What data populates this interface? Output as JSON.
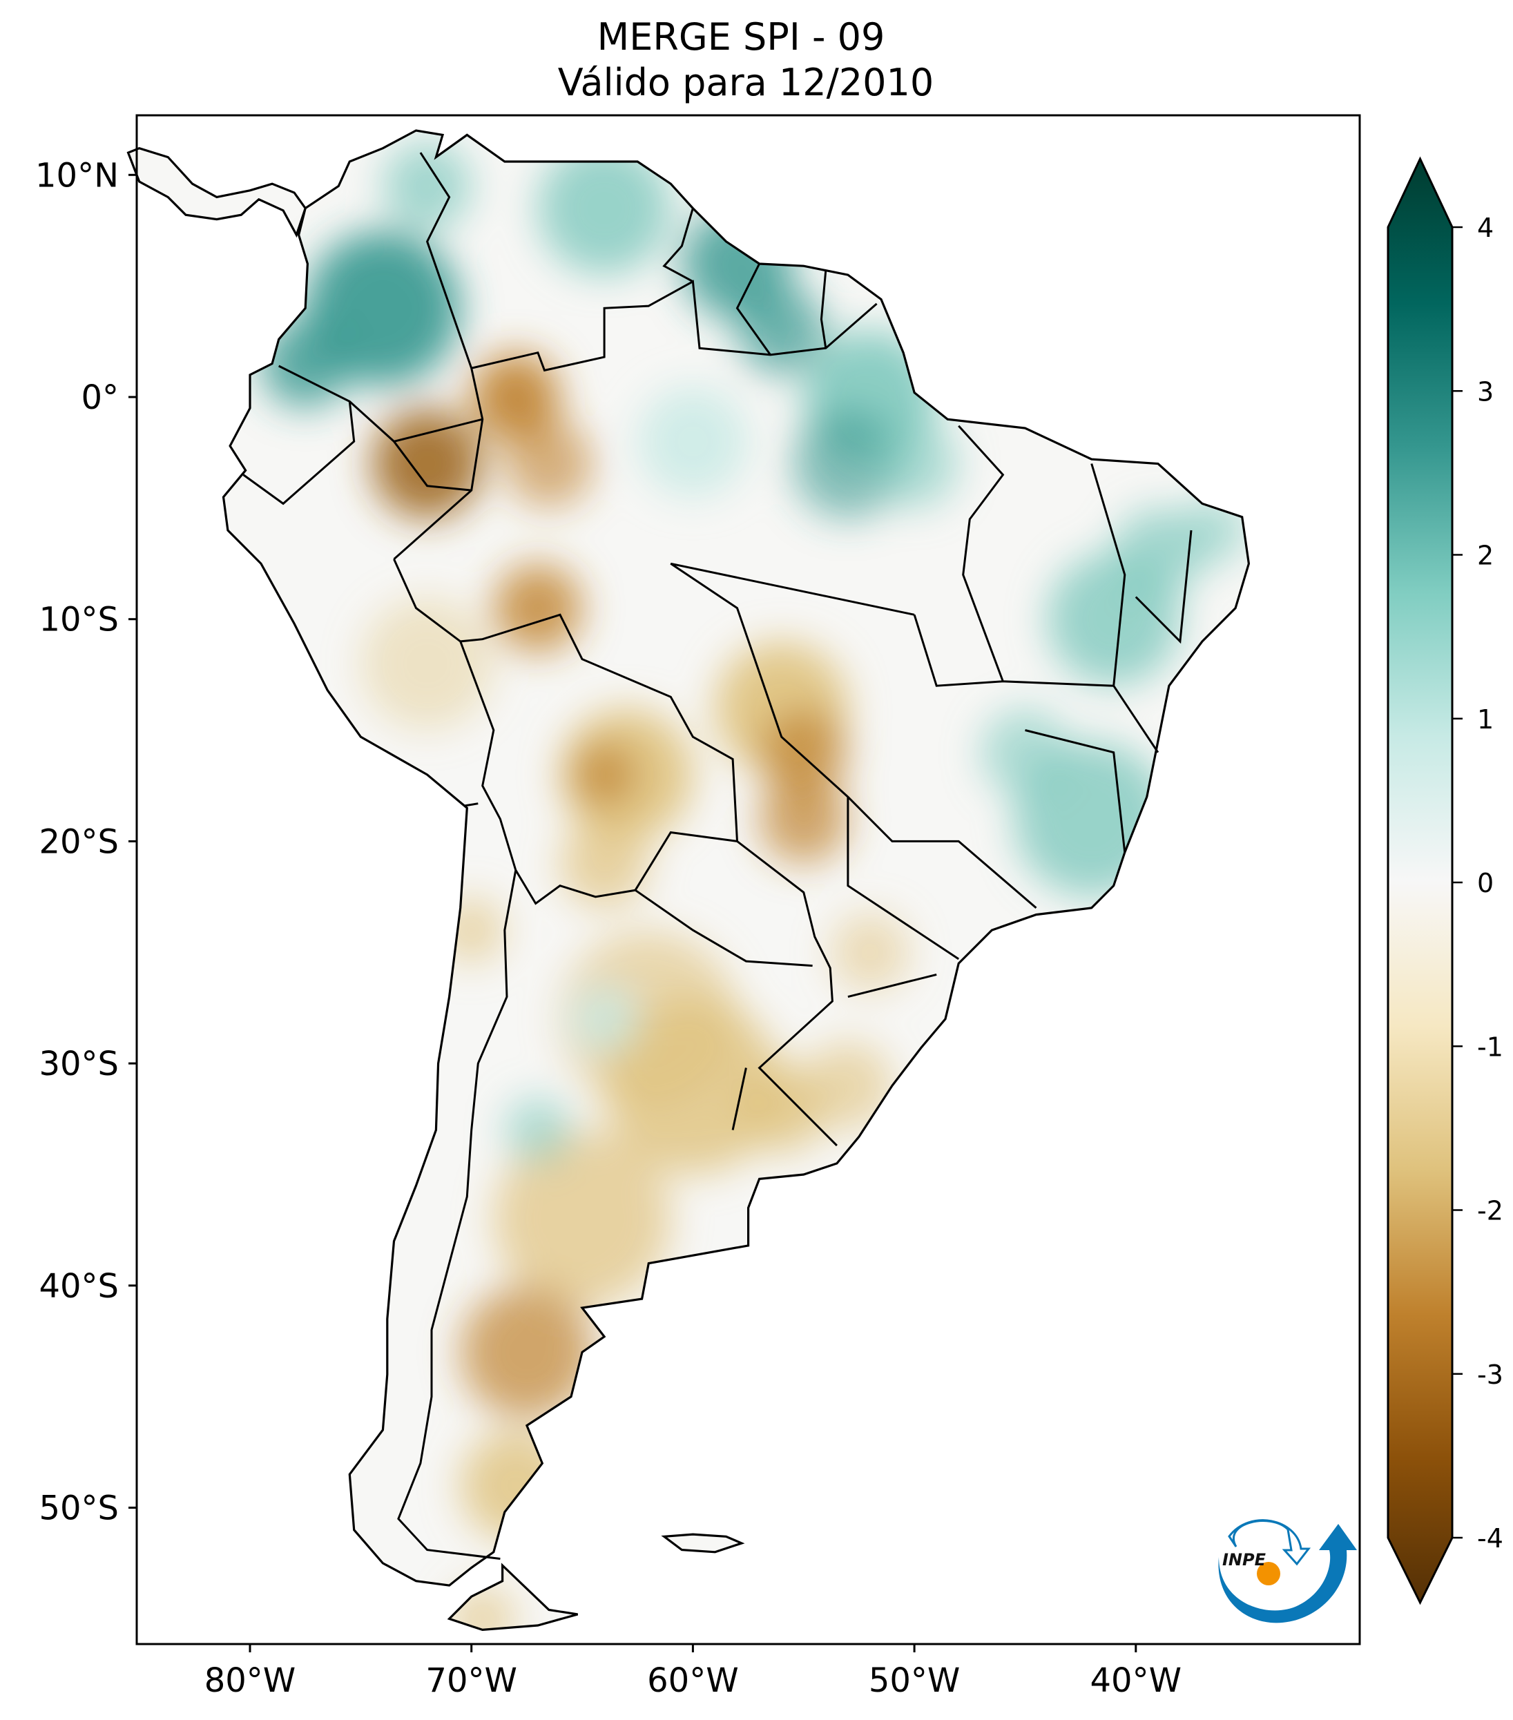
{
  "title": {
    "line1": "MERGE   SPI - 09",
    "line2": "Válido para 12/2010"
  },
  "map": {
    "lon_range": [
      -85,
      -30
    ],
    "lat_range": [
      -56,
      12.7
    ],
    "x_ticks": [
      {
        "value": -80,
        "label": "80°W"
      },
      {
        "value": -70,
        "label": "70°W"
      },
      {
        "value": -60,
        "label": "60°W"
      },
      {
        "value": -50,
        "label": "50°W"
      },
      {
        "value": -40,
        "label": "40°W"
      }
    ],
    "y_ticks": [
      {
        "value": 10,
        "label": "10°N"
      },
      {
        "value": 0,
        "label": "0°"
      },
      {
        "value": -10,
        "label": "10°S"
      },
      {
        "value": -20,
        "label": "20°S"
      },
      {
        "value": -30,
        "label": "30°S"
      },
      {
        "value": -40,
        "label": "40°S"
      },
      {
        "value": -50,
        "label": "50°S"
      }
    ]
  },
  "colorbar": {
    "range": [
      -4,
      4
    ],
    "extend": "both",
    "colormap": "BrBG",
    "ticks": [
      {
        "value": 4,
        "label": "4"
      },
      {
        "value": 3,
        "label": "3"
      },
      {
        "value": 2,
        "label": "2"
      },
      {
        "value": 1,
        "label": "1"
      },
      {
        "value": 0,
        "label": "0"
      },
      {
        "value": -1,
        "label": "-1"
      },
      {
        "value": -2,
        "label": "-2"
      },
      {
        "value": -3,
        "label": "-3"
      },
      {
        "value": -4,
        "label": "-4"
      }
    ],
    "colors": [
      "#543005",
      "#8c510a",
      "#bf812d",
      "#dfc27d",
      "#f6e8c3",
      "#f7f7f7",
      "#c7eae5",
      "#80cdc1",
      "#35978f",
      "#01665e",
      "#003c30"
    ]
  },
  "logo": {
    "text": "INPE",
    "blue": "#0a78b8",
    "orange": "#f39200"
  }
}
